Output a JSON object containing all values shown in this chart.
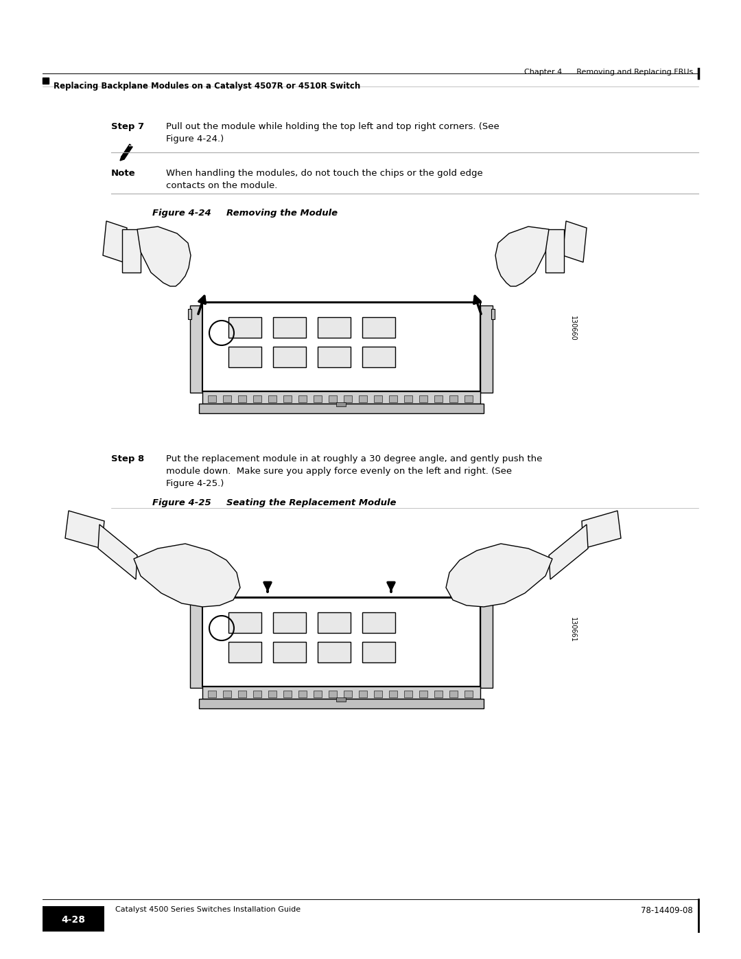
{
  "page_width": 10.8,
  "page_height": 13.97,
  "dpi": 100,
  "bg_color": "#ffffff",
  "text_color": "#000000",
  "header_chapter": "Chapter 4      Removing and Replacing FRUs",
  "header_section": "Replacing Backplane Modules on a Catalyst 4507R or 4510R Switch",
  "step7_label": "Step 7",
  "step7_line1": "Pull out the module while holding the top left and top right corners. (See",
  "step7_line2": "Figure 4-24.)",
  "note_label": "Note",
  "note_line1": "When handling the modules, do not touch the chips or the gold edge",
  "note_line2": "contacts on the module.",
  "fig24_label": "Figure 4-24",
  "fig24_title": "Removing the Module",
  "fig24_code": "130660",
  "step8_label": "Step 8",
  "step8_line1": "Put the replacement module in at roughly a 30 degree angle, and gently push the",
  "step8_line2": "module down.  Make sure you apply force evenly on the left and right. (See",
  "step8_line3": "Figure 4-25.)",
  "fig25_label": "Figure 4-25",
  "fig25_title": "Seating the Replacement Module",
  "fig25_code": "130661",
  "footer_guide": "Catalyst 4500 Series Switches Installation Guide",
  "footer_page": "4-28",
  "footer_doc": "78-14409-08"
}
